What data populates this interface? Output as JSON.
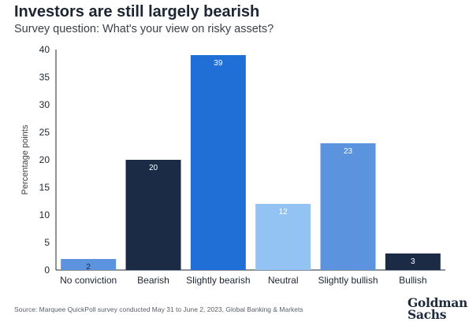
{
  "title": "Investors are still largely bearish",
  "subtitle": "Survey question: What's your view on risky assets?",
  "source": "Source: Marquee QuickPoll survey conducted May 31 to June 2, 2023, Global Banking & Markets",
  "logo": {
    "line1": "Goldman",
    "line2": "Sachs"
  },
  "colors": {
    "navy": "#1c2b45",
    "mid_blue": "#5b93df",
    "bright_blue": "#1f6fd6",
    "light_blue": "#93c3f3"
  },
  "chart_data": {
    "type": "bar",
    "categories": [
      "No conviction",
      "Bearish",
      "Slightly bearish",
      "Neutral",
      "Slightly bullish",
      "Bullish"
    ],
    "values": [
      2,
      20,
      39,
      12,
      23,
      3
    ],
    "data_labels": [
      "2",
      "20",
      "39",
      "12",
      "23",
      "3"
    ],
    "bar_colors": [
      "#5b93df",
      "#1c2b45",
      "#1f6fd6",
      "#93c3f3",
      "#5b93df",
      "#1c2b45"
    ],
    "ylabel": "Percentage points",
    "ylim": [
      0,
      40
    ],
    "yticks": [
      0,
      5,
      10,
      15,
      20,
      25,
      30,
      35,
      40
    ],
    "grid": false
  }
}
